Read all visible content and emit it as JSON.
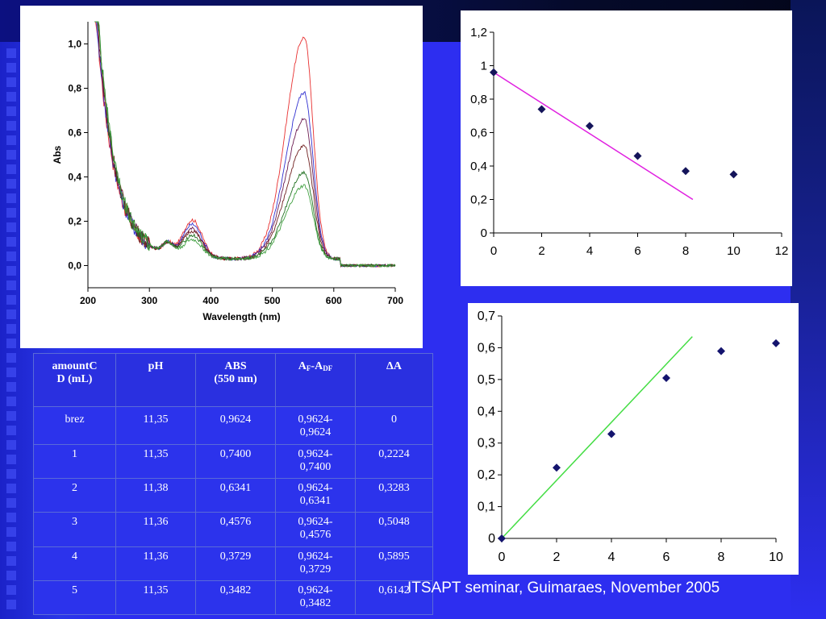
{
  "footer": {
    "caption": "ITSAPT seminar, Guimaraes, November 2005"
  },
  "table": {
    "headers": [
      {
        "text": "amountCD (mL)",
        "sub": ""
      },
      {
        "text": "pH",
        "sub": ""
      },
      {
        "text": "ABS (550 nm)",
        "sub": ""
      },
      {
        "text": "A_F-A_DF",
        "sub": "F,DF"
      },
      {
        "text": "ΔA",
        "sub": ""
      }
    ],
    "header_lines": {
      "amount": [
        "amountC",
        "D (mL)"
      ],
      "ph": "pH",
      "abs": [
        "ABS",
        "(550 nm)"
      ],
      "diff_a": "A",
      "diff_sub1": "F",
      "diff_mid": "-A",
      "diff_sub2": "DF",
      "delta": "ΔA"
    },
    "rows": [
      {
        "amount": "brez",
        "ph": "11,35",
        "abs": "0,9624",
        "diff": [
          "0,9624-",
          "0,9624"
        ],
        "delta": "0"
      },
      {
        "amount": "1",
        "ph": "11,35",
        "abs": "0,7400",
        "diff": [
          "0,9624-",
          "0,7400"
        ],
        "delta": "0,2224"
      },
      {
        "amount": "2",
        "ph": "11,38",
        "abs": "0,6341",
        "diff": [
          "0,9624-",
          "0,6341"
        ],
        "delta": "0,3283"
      },
      {
        "amount": "3",
        "ph": "11,36",
        "abs": "0,4576",
        "diff": [
          "0,9624-",
          "0,4576"
        ],
        "delta": "0,5048"
      },
      {
        "amount": "4",
        "ph": "11,36",
        "abs": "0,3729",
        "diff": [
          "0,9624-",
          "0,3729"
        ],
        "delta": "0,5895"
      },
      {
        "amount": "5",
        "ph": "11,35",
        "abs": "0,3482",
        "diff": [
          "0,9624-",
          "0,3482"
        ],
        "delta": "0,6142"
      }
    ]
  },
  "chart_data": [
    {
      "type": "line",
      "title": "",
      "xlabel": "Wavelength (nm)",
      "ylabel": "Abs",
      "xlim": [
        200,
        700
      ],
      "ylim": [
        -0.1,
        1.1
      ],
      "x_ticks": [
        200,
        300,
        400,
        500,
        600,
        700
      ],
      "x_tick_labels": [
        "200",
        "300",
        "400",
        "500",
        "600",
        "700"
      ],
      "y_ticks": [
        0.0,
        0.2,
        0.4,
        0.6,
        0.8,
        1.0
      ],
      "y_tick_labels": [
        "0,0",
        "0,2",
        "0,4",
        "0,6",
        "0,8",
        "1,0"
      ],
      "grid": false,
      "series": [
        {
          "color": "#e83030",
          "peak550": 1.0,
          "shoulder370": 0.17
        },
        {
          "color": "#3030d0",
          "peak550": 0.75,
          "shoulder370": 0.15
        },
        {
          "color": "#6a1a50",
          "peak550": 0.63,
          "shoulder370": 0.13
        },
        {
          "color": "#702020",
          "peak550": 0.51,
          "shoulder370": 0.12
        },
        {
          "color": "#207020",
          "peak550": 0.39,
          "shoulder370": 0.1
        },
        {
          "color": "#40a040",
          "peak550": 0.33,
          "shoulder370": 0.08
        }
      ]
    },
    {
      "type": "scatter",
      "title": "",
      "xlabel": "",
      "ylabel": "",
      "xlim": [
        0,
        12
      ],
      "ylim": [
        0,
        1.2
      ],
      "x_ticks": [
        0,
        2,
        4,
        6,
        8,
        10,
        12
      ],
      "x_tick_labels": [
        "0",
        "2",
        "4",
        "6",
        "8",
        "10",
        "12"
      ],
      "y_ticks": [
        0,
        0.2,
        0.4,
        0.6,
        0.8,
        1.0,
        1.2
      ],
      "y_tick_labels": [
        "0",
        "0,2",
        "0,4",
        "0,6",
        "0,8",
        "1",
        "1,2"
      ],
      "points": {
        "x": [
          0,
          2,
          4,
          6,
          8,
          10
        ],
        "y": [
          0.96,
          0.74,
          0.64,
          0.46,
          0.37,
          0.35
        ]
      },
      "trendline": {
        "x": [
          0,
          8.3
        ],
        "y": [
          0.96,
          0.2
        ],
        "color": "#e020e0"
      },
      "marker_color": "#14145a"
    },
    {
      "type": "scatter",
      "title": "",
      "xlabel": "",
      "ylabel": "",
      "xlim": [
        0,
        10
      ],
      "ylim": [
        0,
        0.7
      ],
      "x_ticks": [
        0,
        2,
        4,
        6,
        8,
        10
      ],
      "x_tick_labels": [
        "0",
        "2",
        "4",
        "6",
        "8",
        "10"
      ],
      "y_ticks": [
        0,
        0.1,
        0.2,
        0.3,
        0.4,
        0.5,
        0.6,
        0.7
      ],
      "y_tick_labels": [
        "0",
        "0,1",
        "0,2",
        "0,3",
        "0,4",
        "0,5",
        "0,6",
        "0,7"
      ],
      "points": {
        "x": [
          0,
          2,
          4,
          6,
          8,
          10
        ],
        "y": [
          0,
          0.2224,
          0.3283,
          0.5048,
          0.5895,
          0.6142
        ]
      },
      "trendline": {
        "x": [
          0,
          6.95
        ],
        "y": [
          0,
          0.635
        ],
        "color": "#44dd44"
      },
      "marker_color": "#14146e"
    }
  ]
}
